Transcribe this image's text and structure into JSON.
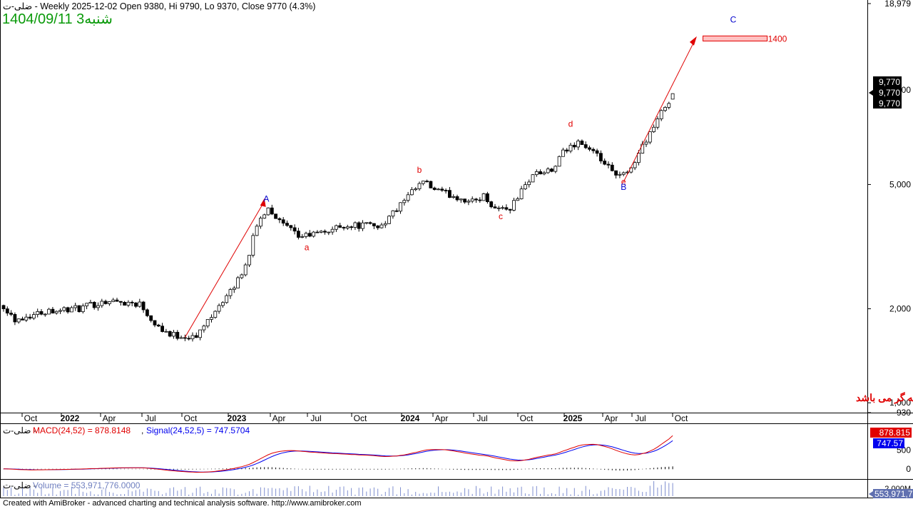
{
  "header": {
    "line1": "ضلی-ت - Weekly 2025-12-02 Open 9380, Hi 9790, Lo 9370, Close 9770 (4.3%)",
    "line2": "1404/09/11 3شنبه"
  },
  "disclaimer": "صرفا نظر شخصی ، مسئولیت خرید و فروش به عهده معامله گر می باشد",
  "footer": "Created with AmiBroker - advanced charting and technical analysis software. http://www.amibroker.com",
  "colors": {
    "price_line": "#e00000",
    "wave_red": "#e00000",
    "wave_blue": "#0000cc",
    "macd": "#e00000",
    "signal": "#0000ee",
    "target_fill": "#ffc0c0"
  },
  "chart_data": [
    {
      "type": "candlestick",
      "scale": "log",
      "ylim": [
        930,
        18979
      ],
      "y_ticks": [
        {
          "v": 18979,
          "label": "18,979"
        },
        {
          "v": 5000,
          "label": "5,000"
        },
        {
          "v": 2000,
          "label": "2,000"
        },
        {
          "v": 1000,
          "label": "1,000"
        },
        {
          "v": 930,
          "label": "930"
        }
      ],
      "price_labels": [
        "9,770",
        "9,770",
        "9,770"
      ],
      "partial_tick_label": "000",
      "x_labels": [
        "Oct",
        "2022",
        "Apr",
        "Jul",
        "Oct",
        "2023",
        "Apr",
        "Jul",
        "Oct",
        "2024",
        "Apr",
        "Jul",
        "Oct",
        "2025",
        "Apr",
        "Jul",
        "Oct"
      ],
      "bold_years": [
        "2022",
        "2023",
        "2024",
        "2025"
      ],
      "waves": [
        {
          "label": "A",
          "color": "blue",
          "time": 69.5,
          "price": 4400
        },
        {
          "label": "a",
          "color": "red",
          "time": 80.2,
          "price": 3080
        },
        {
          "label": "b",
          "color": "red",
          "time": 110,
          "price": 5450
        },
        {
          "label": "c",
          "color": "red",
          "time": 131.5,
          "price": 3870
        },
        {
          "label": "d",
          "color": "red",
          "time": 150,
          "price": 7650
        },
        {
          "label": "e",
          "color": "red",
          "time": 164,
          "price": 5000
        },
        {
          "label": "B",
          "color": "blue",
          "time": 164,
          "price": 4800
        },
        {
          "label": "C",
          "color": "blue",
          "time": 193,
          "price": 16500
        }
      ],
      "target_label": "1400",
      "trend_line_A": {
        "from": {
          "time": 48,
          "price": 1620
        },
        "to": {
          "time": 69,
          "price": 4420
        }
      },
      "trend_line_C": {
        "from": {
          "time": 164,
          "price": 5100
        },
        "to": {
          "time": 183,
          "price": 14600
        }
      },
      "target_zone": {
        "t0": 185,
        "t1": 202,
        "p0": 14400,
        "p1": 14950
      },
      "candles": []
    },
    {
      "type": "line",
      "title": "MACD(24,52) = 878.8148, Signal(24,52,5) = 747.5704",
      "macd_label": "MACD(24,52) = 878.8148",
      "signal_label": "Signal(24,52,5) = 747.5704",
      "ylim": [
        -250,
        1150
      ],
      "y_ticks": [
        {
          "v": 500,
          "label": "500"
        },
        {
          "v": 0,
          "label": "0"
        }
      ],
      "last_macd": "878.815",
      "last_signal": "747.57",
      "series": []
    },
    {
      "type": "bar",
      "title": "Volume = 553,971,776.0000",
      "title_value": "Volume = 553,971,776.0000",
      "y_ticks": [
        {
          "v": 2000000000,
          "label": "2,000M"
        }
      ],
      "last_label": "553,971,7",
      "values": []
    }
  ]
}
